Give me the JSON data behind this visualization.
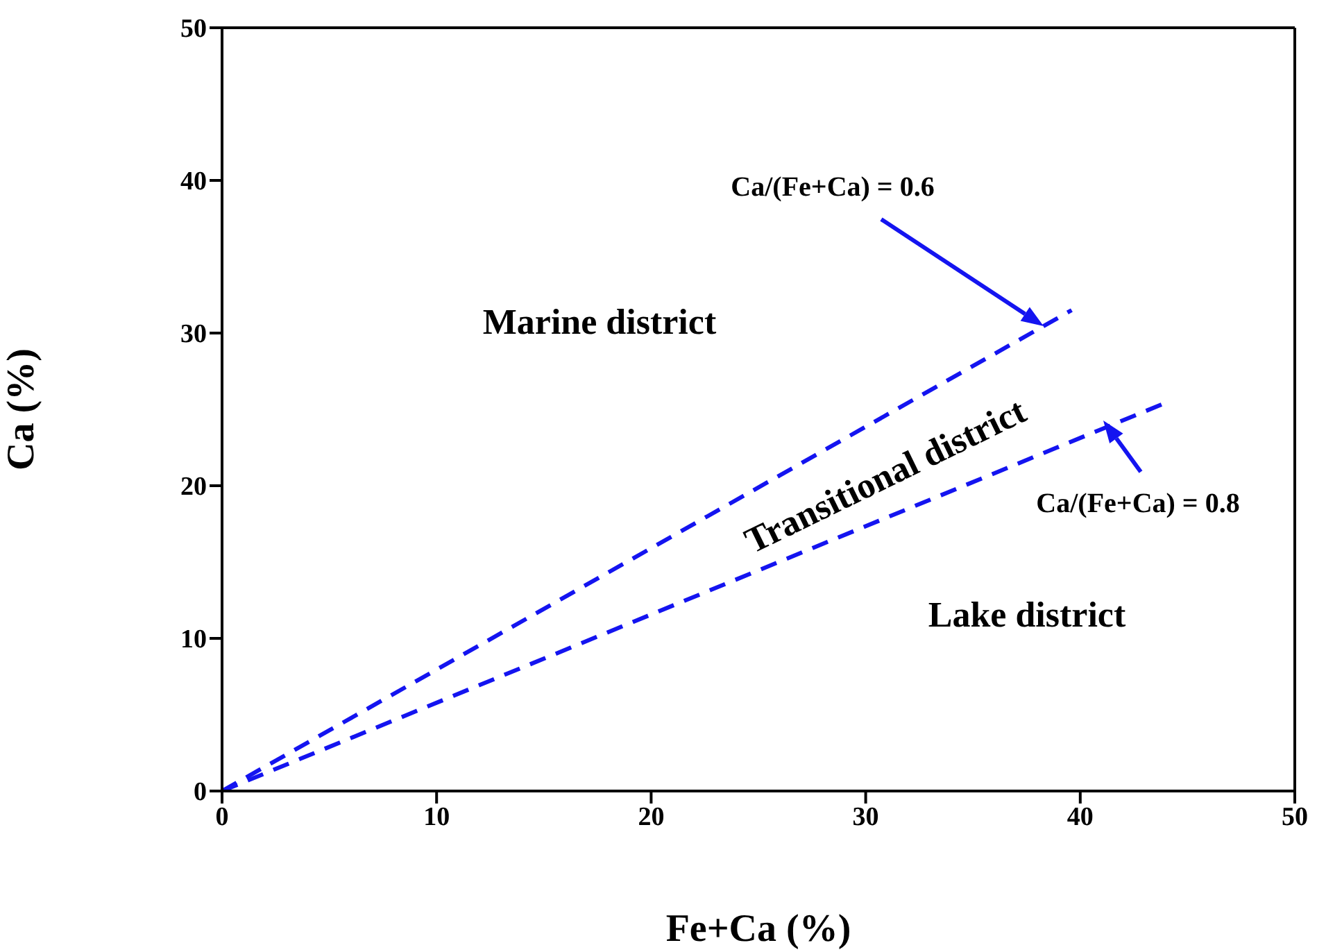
{
  "chart_data": {
    "type": "line",
    "xlabel": "Fe+Ca (%)",
    "ylabel": "Ca (%)",
    "xlim": [
      0,
      50
    ],
    "ylim": [
      0,
      50
    ],
    "xticks": [
      0,
      10,
      20,
      30,
      40,
      50
    ],
    "yticks": [
      0,
      10,
      20,
      30,
      40,
      50
    ],
    "grid": false,
    "line_style": "dashed",
    "marker": "none",
    "series": [
      {
        "color": "#1414f0",
        "x": [
          0,
          39.6
        ],
        "values": [
          0,
          31.5
        ]
      },
      {
        "color": "#1414f0",
        "x": [
          0,
          44.1
        ],
        "values": [
          0,
          25.5
        ]
      }
    ],
    "annotations": [
      "Ca/(Fe+Ca) = 0.6",
      "Ca/(Fe+Ca) = 0.8",
      "Marine district",
      "Transitional district",
      "Lake district"
    ]
  }
}
